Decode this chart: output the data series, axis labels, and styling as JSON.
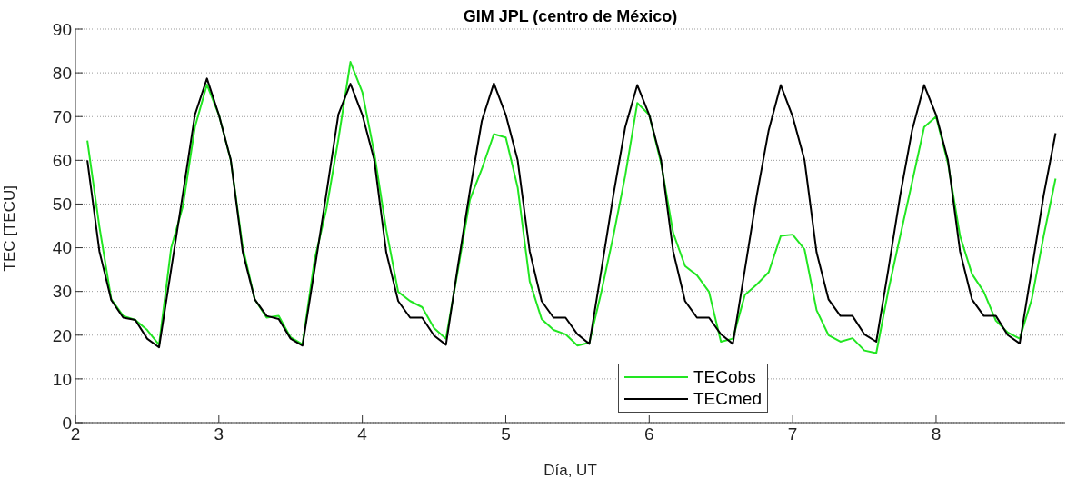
{
  "chart_data": {
    "type": "line",
    "title": "GIM JPL (centro de México)",
    "xlabel": "Día, UT",
    "ylabel": "TEC [TECU]",
    "x": [
      2.083,
      2.167,
      2.25,
      2.333,
      2.417,
      2.5,
      2.583,
      2.667,
      2.75,
      2.833,
      2.917,
      3,
      3.083,
      3.167,
      3.25,
      3.333,
      3.417,
      3.5,
      3.583,
      3.667,
      3.75,
      3.833,
      3.917,
      4,
      4.083,
      4.167,
      4.25,
      4.333,
      4.417,
      4.5,
      4.583,
      4.667,
      4.75,
      4.833,
      4.917,
      5,
      5.083,
      5.167,
      5.25,
      5.333,
      5.417,
      5.5,
      5.583,
      5.667,
      5.75,
      5.833,
      5.917,
      6,
      6.083,
      6.167,
      6.25,
      6.333,
      6.417,
      6.5,
      6.583,
      6.667,
      6.75,
      6.833,
      6.917,
      7,
      7.083,
      7.167,
      7.25,
      7.333,
      7.417,
      7.5,
      7.583,
      7.667,
      7.75,
      7.833,
      7.917,
      8,
      8.083,
      8.167,
      8.25,
      8.333,
      8.417,
      8.5,
      8.583,
      8.667,
      8.75,
      8.833
    ],
    "series": [
      {
        "name": "TECobs",
        "color": "#22e622",
        "values": [
          64.5,
          44.8,
          28.2,
          24.4,
          23.5,
          21.2,
          17.8,
          39.9,
          49.6,
          67.6,
          77.3,
          70.4,
          60,
          40,
          28.2,
          24,
          24.4,
          19.5,
          17.9,
          37.2,
          48.9,
          64.8,
          82.5,
          75.6,
          61.7,
          44.1,
          29.9,
          27.8,
          26.4,
          21.6,
          19.2,
          35,
          51,
          58,
          66,
          65.2,
          53.8,
          32.3,
          23.7,
          21.2,
          20.2,
          17.6,
          18.3,
          30,
          42.7,
          56.5,
          73.1,
          70.4,
          59.3,
          43.4,
          35.8,
          33.7,
          29.9,
          18.5,
          19.2,
          29.2,
          31.6,
          34.4,
          42.7,
          43,
          39.6,
          25.7,
          20,
          18.5,
          19.3,
          16.5,
          15.9,
          30.2,
          42.7,
          55,
          67.6,
          70,
          59.3,
          42.7,
          34,
          29.9,
          23.3,
          20.6,
          19.2,
          28.2,
          42.7,
          55.8
        ]
      },
      {
        "name": "TECmed",
        "color": "#000000",
        "values": [
          60,
          39.2,
          28,
          24,
          23.5,
          19.2,
          17.2,
          35,
          52.5,
          70.4,
          78.7,
          70.4,
          60.1,
          38.9,
          28.2,
          24.4,
          23.7,
          19.2,
          17.6,
          35,
          52.5,
          70.5,
          77.5,
          70.4,
          60.1,
          38.9,
          27.8,
          24,
          24,
          19.9,
          17.8,
          36,
          53,
          69,
          77.6,
          70.4,
          60,
          39.2,
          27.8,
          24,
          24,
          20.2,
          18,
          35,
          52,
          67.6,
          77.2,
          70.4,
          60,
          39.2,
          27.8,
          24,
          24,
          20.2,
          18,
          35,
          52,
          66.9,
          77.2,
          70,
          60,
          38.9,
          28.2,
          24.4,
          24.4,
          20.2,
          18.5,
          35,
          52,
          66.9,
          77.2,
          70.4,
          60,
          39.2,
          28.2,
          24.4,
          24.4,
          20,
          18.1,
          35,
          52,
          66.2
        ]
      }
    ],
    "xlim": [
      2,
      8.9
    ],
    "xticks": [
      2,
      3,
      4,
      5,
      6,
      7,
      8
    ],
    "ylim": [
      0,
      90
    ],
    "yticks": [
      0,
      10,
      20,
      30,
      40,
      50,
      60,
      70,
      80,
      90
    ],
    "grid": "y",
    "legend": "bottom",
    "marker": "none",
    "line_style": "solid"
  }
}
